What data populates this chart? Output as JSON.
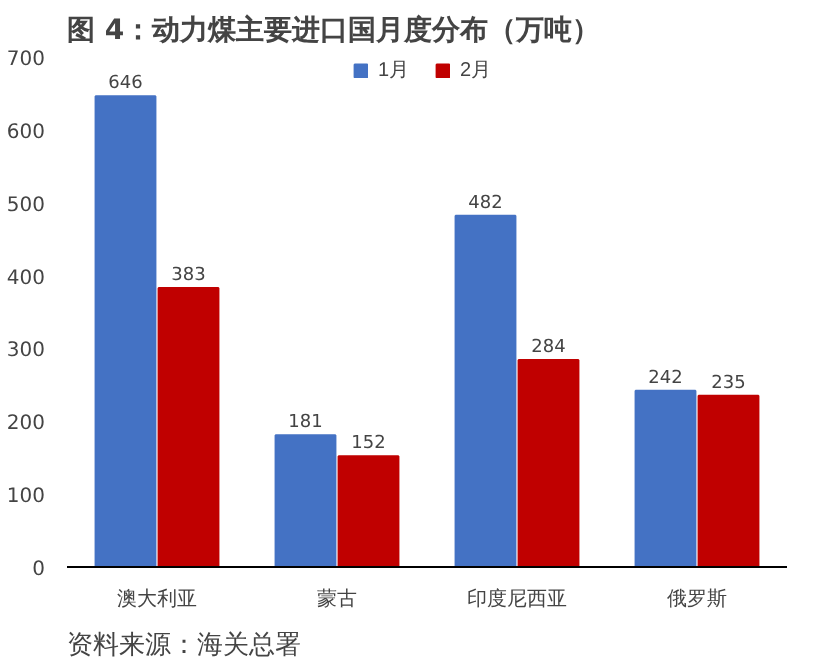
{
  "chart_data": {
    "type": "bar",
    "title": "图 4：动力煤主要进口国月度分布（万吨）",
    "categories": [
      "澳大利亚",
      "蒙古",
      "印度尼西亚",
      "俄罗斯"
    ],
    "series": [
      {
        "name": "1月",
        "color": "#4472c4",
        "values": [
          646,
          181,
          482,
          242
        ]
      },
      {
        "name": "2月",
        "color": "#c00000",
        "values": [
          383,
          152,
          284,
          235
        ]
      }
    ],
    "ylim": [
      0,
      700
    ],
    "yticks": [
      0,
      100,
      200,
      300,
      400,
      500,
      600,
      700
    ],
    "data_labels": true,
    "legend": "top",
    "grid": false,
    "annotations": [
      "资料来源：海关总署"
    ]
  }
}
